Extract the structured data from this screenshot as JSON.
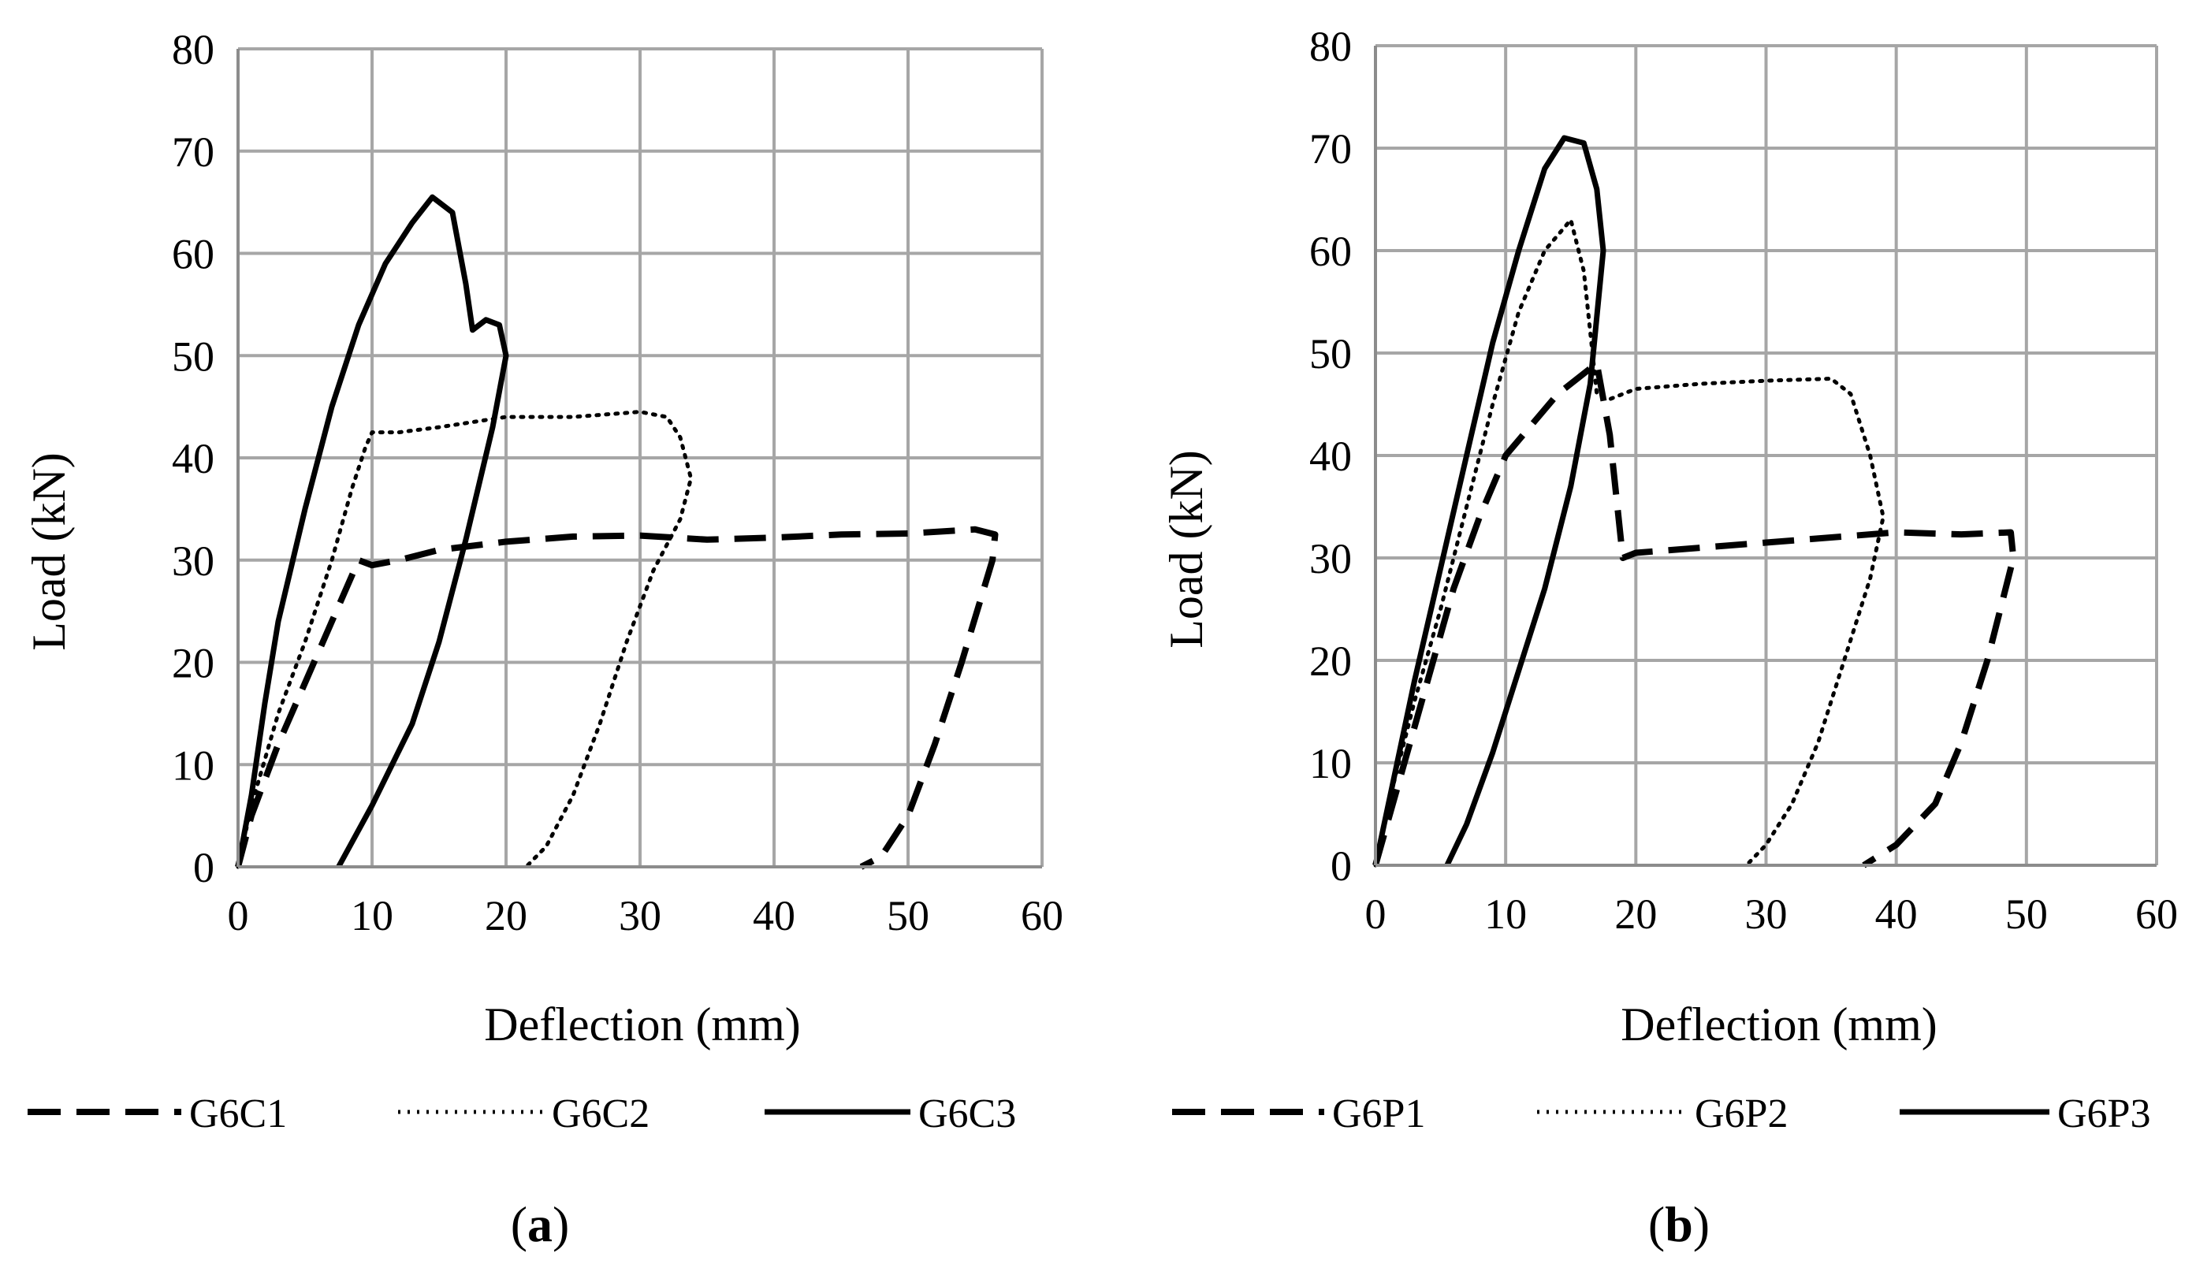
{
  "chart_data": [
    {
      "type": "line",
      "panel_label": "a",
      "xlabel": "Deflection (mm)",
      "ylabel": "Load (kN)",
      "xlim": [
        0,
        60
      ],
      "ylim": [
        0,
        80
      ],
      "xticks": [
        "0",
        "10",
        "20",
        "30",
        "40",
        "50",
        "60"
      ],
      "yticks": [
        "0",
        "10",
        "20",
        "30",
        "40",
        "50",
        "60",
        "70",
        "80"
      ],
      "grid": true,
      "legend": "bottom",
      "series": [
        {
          "name": "G6C1",
          "style": "dashed",
          "points": [
            [
              0,
              0
            ],
            [
              1,
              5
            ],
            [
              3,
              12
            ],
            [
              5,
              18
            ],
            [
              7,
              24
            ],
            [
              9,
              30
            ],
            [
              10,
              29.5
            ],
            [
              12,
              30
            ],
            [
              15,
              31
            ],
            [
              20,
              31.8
            ],
            [
              25,
              32.3
            ],
            [
              30,
              32.4
            ],
            [
              35,
              32
            ],
            [
              40,
              32.2
            ],
            [
              45,
              32.5
            ],
            [
              50,
              32.6
            ],
            [
              55,
              33
            ],
            [
              56.5,
              32.5
            ],
            [
              56.3,
              30
            ],
            [
              54,
              20
            ],
            [
              52,
              12
            ],
            [
              50,
              5
            ],
            [
              48,
              1
            ],
            [
              46.5,
              0
            ]
          ]
        },
        {
          "name": "G6C2",
          "style": "dotted",
          "points": [
            [
              0,
              0
            ],
            [
              1,
              6
            ],
            [
              3,
              15
            ],
            [
              5,
              22
            ],
            [
              7,
              30
            ],
            [
              8.5,
              37
            ],
            [
              9.5,
              41
            ],
            [
              10,
              42.5
            ],
            [
              12,
              42.5
            ],
            [
              15,
              43
            ],
            [
              20,
              44
            ],
            [
              25,
              44
            ],
            [
              30,
              44.5
            ],
            [
              32,
              44
            ],
            [
              33,
              42
            ],
            [
              33.8,
              38
            ],
            [
              33,
              34
            ],
            [
              31,
              29
            ],
            [
              29,
              22
            ],
            [
              27,
              14
            ],
            [
              25,
              7
            ],
            [
              23,
              2
            ],
            [
              21.5,
              0
            ]
          ]
        },
        {
          "name": "G6C3",
          "style": "solid",
          "points": [
            [
              0,
              0
            ],
            [
              1,
              7
            ],
            [
              2,
              16
            ],
            [
              3,
              24
            ],
            [
              5,
              35
            ],
            [
              7,
              45
            ],
            [
              9,
              53
            ],
            [
              11,
              59
            ],
            [
              13,
              63
            ],
            [
              14.5,
              65.5
            ],
            [
              16,
              64
            ],
            [
              17,
              57
            ],
            [
              17.5,
              52.5
            ],
            [
              18.5,
              53.5
            ],
            [
              19.5,
              53
            ],
            [
              20,
              50
            ],
            [
              19,
              43
            ],
            [
              17,
              32
            ],
            [
              15,
              22
            ],
            [
              13,
              14
            ],
            [
              10,
              6
            ],
            [
              7.5,
              0
            ]
          ]
        }
      ]
    },
    {
      "type": "line",
      "panel_label": "b",
      "xlabel": "Deflection (mm)",
      "ylabel": "Load (kN)",
      "xlim": [
        0,
        60
      ],
      "ylim": [
        0,
        80
      ],
      "xticks": [
        "0",
        "10",
        "20",
        "30",
        "40",
        "50",
        "60"
      ],
      "yticks": [
        "0",
        "10",
        "20",
        "30",
        "40",
        "50",
        "60",
        "70",
        "80"
      ],
      "grid": true,
      "legend": "bottom",
      "series": [
        {
          "name": "G6P1",
          "style": "dashed",
          "points": [
            [
              0,
              0
            ],
            [
              2,
              9
            ],
            [
              4,
              18
            ],
            [
              6,
              27
            ],
            [
              8,
              34
            ],
            [
              10,
              40
            ],
            [
              12,
              43
            ],
            [
              14,
              46
            ],
            [
              16,
              48
            ],
            [
              17,
              49
            ],
            [
              18,
              42
            ],
            [
              19,
              30
            ],
            [
              20,
              30.5
            ],
            [
              25,
              31
            ],
            [
              30,
              31.5
            ],
            [
              35,
              32
            ],
            [
              40,
              32.5
            ],
            [
              45,
              32.3
            ],
            [
              48.8,
              32.5
            ],
            [
              49,
              30
            ],
            [
              47,
              20
            ],
            [
              45,
              12
            ],
            [
              43,
              6
            ],
            [
              40,
              2
            ],
            [
              37.5,
              0
            ]
          ]
        },
        {
          "name": "G6P2",
          "style": "dotted",
          "points": [
            [
              0,
              0
            ],
            [
              1,
              6
            ],
            [
              3,
              16
            ],
            [
              5,
              25
            ],
            [
              7,
              35
            ],
            [
              9,
              45
            ],
            [
              11,
              54
            ],
            [
              13,
              60
            ],
            [
              15,
              63
            ],
            [
              16,
              58
            ],
            [
              17,
              46
            ],
            [
              18,
              45.5
            ],
            [
              20,
              46.5
            ],
            [
              25,
              47
            ],
            [
              30,
              47.3
            ],
            [
              35,
              47.5
            ],
            [
              36.5,
              46
            ],
            [
              38,
              40
            ],
            [
              39,
              34
            ],
            [
              38,
              28
            ],
            [
              36,
              20
            ],
            [
              34,
              12
            ],
            [
              32,
              6
            ],
            [
              30,
              2
            ],
            [
              28.5,
              0
            ]
          ]
        },
        {
          "name": "G6P3",
          "style": "solid",
          "points": [
            [
              0,
              0
            ],
            [
              1,
              6
            ],
            [
              3,
              18
            ],
            [
              5,
              29
            ],
            [
              7,
              40
            ],
            [
              9,
              51
            ],
            [
              11,
              60
            ],
            [
              13,
              68
            ],
            [
              14.5,
              71
            ],
            [
              16,
              70.5
            ],
            [
              17,
              66
            ],
            [
              17.5,
              60
            ],
            [
              16.5,
              47
            ],
            [
              15,
              37
            ],
            [
              13,
              27
            ],
            [
              11,
              19
            ],
            [
              9,
              11
            ],
            [
              7,
              4
            ],
            [
              5.5,
              0
            ]
          ]
        }
      ]
    }
  ]
}
